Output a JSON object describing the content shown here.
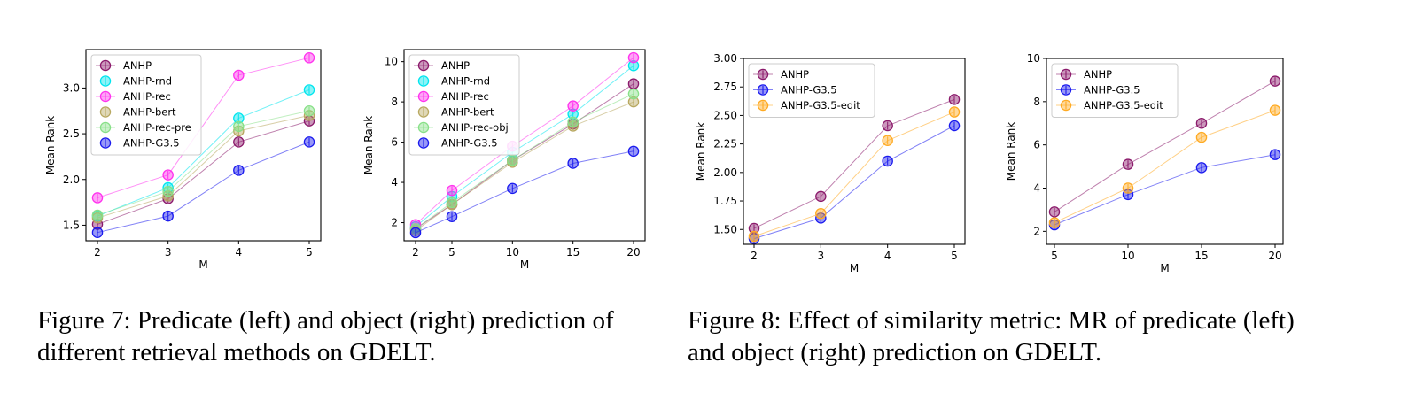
{
  "colors": {
    "ANHP": "#8b1a6b",
    "ANHP-rnd": "#00e5ee",
    "ANHP-rec": "#ff33ee",
    "ANHP-bert": "#b8a860",
    "ANHP-rec-pre": "#88e088",
    "ANHP-rec-obj": "#88e088",
    "ANHP-G3.5": "#1a1aee",
    "ANHP-G3.5-edit": "#ffaa22"
  },
  "captions": {
    "fig7": "Figure 7: Predicate (left) and object (right) prediction of different retrieval methods on GDELT.",
    "fig8": "Figure 8: Effect of similarity metric: MR of predicate (left) and object (right) prediction on GDELT."
  },
  "chart_data": [
    {
      "type": "line",
      "title": "",
      "xlabel": "M",
      "ylabel": "Mean Rank",
      "x": [
        2,
        3,
        4,
        5
      ],
      "xticks": [
        "2",
        "3",
        "4",
        "5"
      ],
      "yticks": [
        1.5,
        2.0,
        2.5,
        3.0
      ],
      "ytick_labels": [
        "1.5",
        "2.0",
        "2.5",
        "3.0"
      ],
      "ylim": [
        1.33,
        3.42
      ],
      "legend": "top-left",
      "grid": false,
      "series": [
        {
          "name": "ANHP",
          "values": [
            1.51,
            1.79,
            2.41,
            2.64
          ]
        },
        {
          "name": "ANHP-rnd",
          "values": [
            1.6,
            1.91,
            2.67,
            2.98
          ]
        },
        {
          "name": "ANHP-rec",
          "values": [
            1.8,
            2.05,
            3.14,
            3.33
          ]
        },
        {
          "name": "ANHP-bert",
          "values": [
            1.58,
            1.82,
            2.53,
            2.7
          ]
        },
        {
          "name": "ANHP-rec-pre",
          "values": [
            1.61,
            1.87,
            2.58,
            2.75
          ]
        },
        {
          "name": "ANHP-G3.5",
          "values": [
            1.42,
            1.6,
            2.1,
            2.41
          ]
        }
      ]
    },
    {
      "type": "line",
      "title": "",
      "xlabel": "M",
      "ylabel": "Mean Rank",
      "x": [
        2,
        5,
        10,
        15,
        20
      ],
      "xticks": [
        "2",
        "5",
        "10",
        "15",
        "20"
      ],
      "yticks": [
        2,
        4,
        6,
        8,
        10
      ],
      "ytick_labels": [
        "2",
        "4",
        "6",
        "8",
        "10"
      ],
      "ylim": [
        1.1,
        10.6
      ],
      "legend": "top-left",
      "grid": false,
      "series": [
        {
          "name": "ANHP",
          "values": [
            1.7,
            2.9,
            5.1,
            6.9,
            8.9
          ]
        },
        {
          "name": "ANHP-rnd",
          "values": [
            1.8,
            3.3,
            5.5,
            7.4,
            9.8
          ]
        },
        {
          "name": "ANHP-rec",
          "values": [
            1.9,
            3.6,
            5.8,
            7.8,
            10.2
          ]
        },
        {
          "name": "ANHP-bert",
          "values": [
            1.6,
            2.9,
            5.0,
            6.8,
            8.0
          ]
        },
        {
          "name": "ANHP-rec-obj",
          "values": [
            1.7,
            3.0,
            5.1,
            7.0,
            8.4
          ]
        },
        {
          "name": "ANHP-G3.5",
          "values": [
            1.5,
            2.3,
            3.7,
            4.95,
            5.55
          ]
        }
      ]
    },
    {
      "type": "line",
      "title": "",
      "xlabel": "M",
      "ylabel": "Mean Rank",
      "x": [
        2,
        3,
        4,
        5
      ],
      "xticks": [
        "2",
        "3",
        "4",
        "5"
      ],
      "yticks": [
        1.5,
        1.75,
        2.0,
        2.25,
        2.5,
        2.75,
        3.0
      ],
      "ytick_labels": [
        "1.50",
        "1.75",
        "2.00",
        "2.25",
        "2.50",
        "2.75",
        "3.00"
      ],
      "ylim": [
        1.37,
        3.0
      ],
      "legend": "top-left",
      "grid": false,
      "series": [
        {
          "name": "ANHP",
          "values": [
            1.51,
            1.79,
            2.41,
            2.64
          ]
        },
        {
          "name": "ANHP-G3.5",
          "values": [
            1.42,
            1.6,
            2.1,
            2.41
          ]
        },
        {
          "name": "ANHP-G3.5-edit",
          "values": [
            1.44,
            1.64,
            2.28,
            2.53
          ]
        }
      ]
    },
    {
      "type": "line",
      "title": "",
      "xlabel": "M",
      "ylabel": "Mean Rank",
      "x": [
        5,
        10,
        15,
        20
      ],
      "xticks": [
        "5",
        "10",
        "15",
        "20"
      ],
      "yticks": [
        2,
        4,
        6,
        8,
        10
      ],
      "ytick_labels": [
        "2",
        "4",
        "6",
        "8",
        "10"
      ],
      "ylim": [
        1.4,
        10.0
      ],
      "legend": "top-left",
      "grid": false,
      "series": [
        {
          "name": "ANHP",
          "values": [
            2.9,
            5.1,
            7.0,
            8.95
          ]
        },
        {
          "name": "ANHP-G3.5",
          "values": [
            2.3,
            3.7,
            4.95,
            5.55
          ]
        },
        {
          "name": "ANHP-G3.5-edit",
          "values": [
            2.4,
            4.0,
            6.35,
            7.6
          ]
        }
      ]
    }
  ]
}
